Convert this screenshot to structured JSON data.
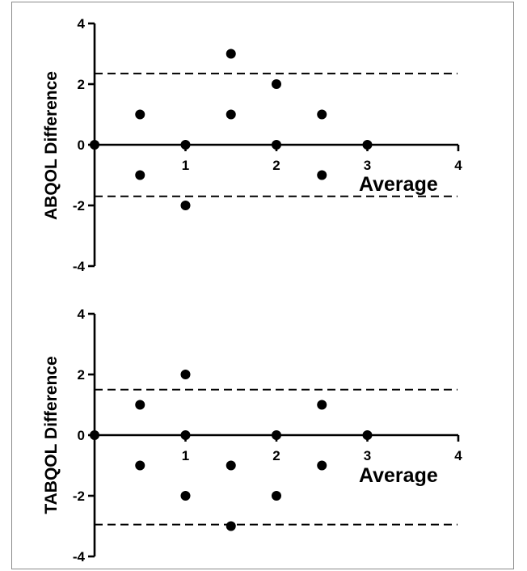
{
  "chart_data": [
    {
      "type": "scatter",
      "ylabel": "ABQOL Difference",
      "xlabel": "Average",
      "xlim": [
        0,
        4
      ],
      "ylim": [
        -4,
        4
      ],
      "x_ticks": [
        "1",
        "2",
        "3",
        "4"
      ],
      "y_ticks": [
        "4",
        "2",
        "0",
        "-2",
        "-4"
      ],
      "reference_lines": [
        2.35,
        -1.7
      ],
      "points": [
        {
          "x": 0,
          "y": 0
        },
        {
          "x": 0.5,
          "y": 1
        },
        {
          "x": 0.5,
          "y": -1
        },
        {
          "x": 1,
          "y": 0
        },
        {
          "x": 1,
          "y": -2
        },
        {
          "x": 1.5,
          "y": 3
        },
        {
          "x": 1.5,
          "y": 1
        },
        {
          "x": 2,
          "y": 2
        },
        {
          "x": 2,
          "y": 0
        },
        {
          "x": 2.5,
          "y": 1
        },
        {
          "x": 2.5,
          "y": -1
        },
        {
          "x": 3,
          "y": 0
        }
      ],
      "grid": false
    },
    {
      "type": "scatter",
      "ylabel": "TABQOL Difference",
      "xlabel": "Average",
      "xlim": [
        0,
        4
      ],
      "ylim": [
        -4,
        4
      ],
      "x_ticks": [
        "1",
        "2",
        "3",
        "4"
      ],
      "y_ticks": [
        "4",
        "2",
        "0",
        "-2",
        "-4"
      ],
      "reference_lines": [
        1.5,
        -2.95
      ],
      "points": [
        {
          "x": 0,
          "y": 0
        },
        {
          "x": 0.5,
          "y": 1
        },
        {
          "x": 0.5,
          "y": -1
        },
        {
          "x": 1,
          "y": 2
        },
        {
          "x": 1,
          "y": 0
        },
        {
          "x": 1,
          "y": -2
        },
        {
          "x": 1.5,
          "y": -1
        },
        {
          "x": 1.5,
          "y": -3
        },
        {
          "x": 2,
          "y": 0
        },
        {
          "x": 2,
          "y": -2
        },
        {
          "x": 2.5,
          "y": 1
        },
        {
          "x": 2.5,
          "y": -1
        },
        {
          "x": 3,
          "y": 0
        }
      ],
      "grid": false
    }
  ]
}
